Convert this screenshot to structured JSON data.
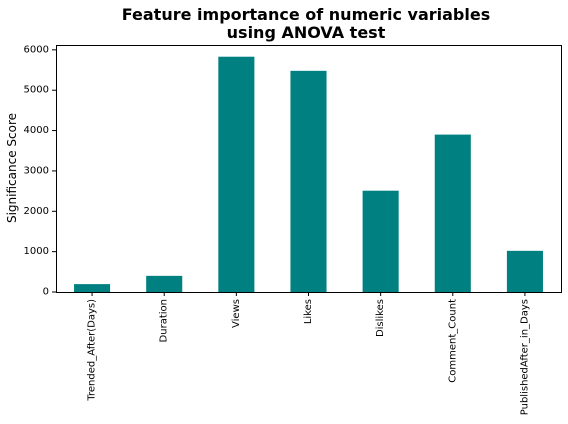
{
  "chart_data": {
    "type": "bar",
    "title_lines": [
      "Feature importance of numeric variables",
      "using ANOVA test"
    ],
    "xlabel": "",
    "ylabel": "Significance Score",
    "categories": [
      "Trended_After(Days)",
      "Duration",
      "Views",
      "Likes",
      "Dislikes",
      "Comment_Count",
      "PublishedAfter_in_Days"
    ],
    "values": [
      195,
      400,
      5830,
      5480,
      2510,
      3900,
      1020
    ],
    "ylim": [
      0,
      6120
    ],
    "yticks": [
      0,
      1000,
      2000,
      3000,
      4000,
      5000,
      6000
    ],
    "ytick_labels": [
      "0",
      "1000",
      "2000",
      "3000",
      "4000",
      "5000",
      "6000"
    ],
    "bar_color": "#008080",
    "grid": false,
    "legend": "none"
  }
}
